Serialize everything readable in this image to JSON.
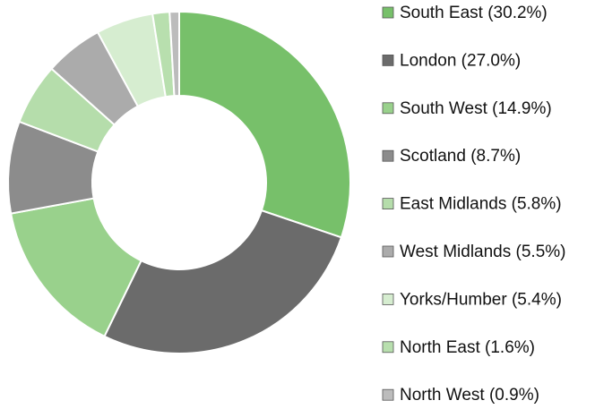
{
  "chart_data": {
    "type": "donut",
    "categories": [
      "South East (30.2%)",
      "London (27.0%)",
      "South West (14.9%)",
      "Scotland (8.7%)",
      "East Midlands (5.8%)",
      "West Midlands (5.5%)",
      "Yorks/Humber (5.4%)",
      "North East (1.6%)",
      "North West (0.9%)"
    ],
    "values": [
      30.2,
      27.0,
      14.9,
      8.7,
      5.8,
      5.5,
      5.4,
      1.6,
      0.9
    ],
    "colors": [
      "#77c06a",
      "#6b6b6b",
      "#99d18c",
      "#8c8c8c",
      "#b5ddab",
      "#ababab",
      "#d6edd0",
      "#b8dfae",
      "#bcbcbc"
    ],
    "legend": "right"
  }
}
